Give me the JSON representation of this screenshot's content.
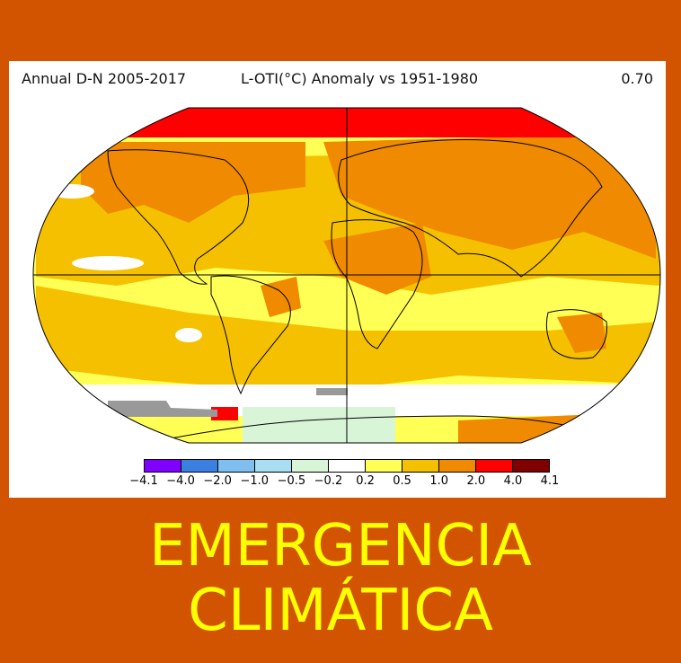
{
  "header": {
    "left": "Annual D-N 2005-2017",
    "center": "L-OTI(°C) Anomaly vs 1951-1980",
    "right": "0.70"
  },
  "legend": {
    "ticks": [
      "−4.1",
      "−4.0",
      "−2.0",
      "−1.0",
      "−0.5",
      "−0.2",
      "0.2",
      "0.5",
      "1.0",
      "2.0",
      "4.0",
      "4.1"
    ],
    "colors": [
      "#8000ff",
      "#3b7fe0",
      "#7fbfef",
      "#a8ddf2",
      "#d8f5d8",
      "#ffffff",
      "#ffff55",
      "#f5c000",
      "#f08a00",
      "#ff0000",
      "#800000"
    ]
  },
  "map": {
    "colors": {
      "yellow": "#ffff55",
      "gold": "#f5c000",
      "orange": "#f08a00",
      "red": "#ff0000",
      "paleblue": "#d8f5d8",
      "white": "#ffffff",
      "gray": "#999999"
    }
  },
  "title": {
    "line1": "EMERGENCIA",
    "line2": "CLIMÁTICA"
  },
  "background_color": "#d35400",
  "title_color": "#ffff00"
}
